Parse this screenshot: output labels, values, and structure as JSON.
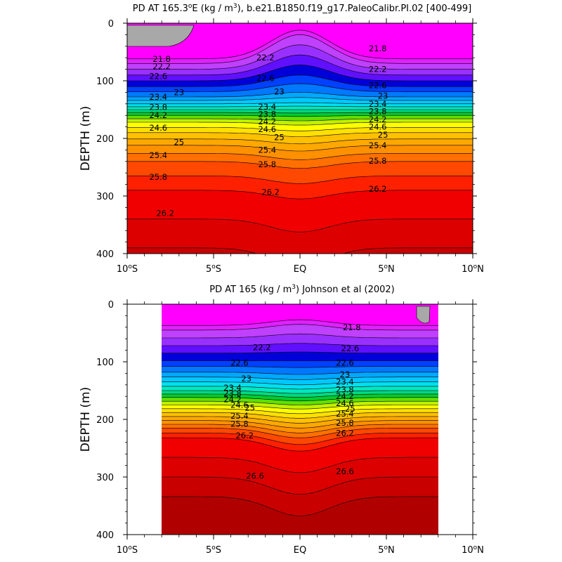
{
  "chart_data": [
    {
      "type": "contour",
      "title_main": "PD AT 165.3",
      "title_deg_sup": "o",
      "title_rest1": "E (kg / m",
      "title_unit_sup": "3",
      "title_rest2": "), b.e21.B1850.f19_g17.PaleoCalibr.PI.02 [400-499]",
      "ylabel": "DEPTH (m)",
      "xlim": [
        -10,
        10
      ],
      "ylim": [
        0,
        400
      ],
      "y_reversed": true,
      "x_ticks": [
        {
          "value": -10,
          "num": "10",
          "sup": "o",
          "hem": "S"
        },
        {
          "value": -5,
          "num": "5",
          "sup": "o",
          "hem": "S"
        },
        {
          "value": 0,
          "num": "EQ",
          "sup": "",
          "hem": ""
        },
        {
          "value": 5,
          "num": "5",
          "sup": "o",
          "hem": "N"
        },
        {
          "value": 10,
          "num": "10",
          "sup": "o",
          "hem": "N"
        }
      ],
      "y_ticks": [
        0,
        100,
        200,
        300,
        400
      ],
      "data_extent": [
        -10,
        10
      ],
      "contour_levels": [
        21.6,
        21.8,
        22.0,
        22.2,
        22.4,
        22.6,
        22.8,
        23.0,
        23.2,
        23.4,
        23.6,
        23.8,
        24.0,
        24.2,
        24.4,
        24.6,
        24.8,
        25.0,
        25.2,
        25.4,
        25.6,
        25.8,
        26.0,
        26.2,
        26.4,
        26.6,
        26.8
      ],
      "depth_profile": {
        "levels": [
          21.8,
          22.2,
          22.6,
          23.0,
          23.4,
          23.8,
          24.2,
          24.6,
          25.0,
          25.4,
          25.8,
          26.2,
          26.6
        ],
        "offpeak_depth": [
          70,
          90,
          110,
          128,
          140,
          150,
          160,
          172,
          190,
          212,
          240,
          290,
          390
        ],
        "equator_depth": [
          20,
          55,
          90,
          120,
          138,
          150,
          162,
          177,
          197,
          222,
          252,
          305,
          420
        ]
      },
      "contour_labels": [
        {
          "lat": -8.0,
          "depth": 62,
          "text": "21.8"
        },
        {
          "lat": -8.0,
          "depth": 75,
          "text": "22.2"
        },
        {
          "lat": -8.2,
          "depth": 92,
          "text": "22.6"
        },
        {
          "lat": -7.0,
          "depth": 120,
          "text": "23"
        },
        {
          "lat": -8.2,
          "depth": 128,
          "text": "23.4"
        },
        {
          "lat": -8.2,
          "depth": 146,
          "text": "23.8"
        },
        {
          "lat": -8.2,
          "depth": 160,
          "text": "24.2"
        },
        {
          "lat": -8.2,
          "depth": 182,
          "text": "24.6"
        },
        {
          "lat": -7.0,
          "depth": 207,
          "text": "25"
        },
        {
          "lat": -8.2,
          "depth": 229,
          "text": "25.4"
        },
        {
          "lat": -8.2,
          "depth": 267,
          "text": "25.8"
        },
        {
          "lat": -7.8,
          "depth": 330,
          "text": "26.2"
        },
        {
          "lat": -2.0,
          "depth": 60,
          "text": "22.2"
        },
        {
          "lat": -2.0,
          "depth": 96,
          "text": "22.6"
        },
        {
          "lat": -1.2,
          "depth": 119,
          "text": "23"
        },
        {
          "lat": -1.9,
          "depth": 145,
          "text": "23.4"
        },
        {
          "lat": -1.9,
          "depth": 158,
          "text": "23.8"
        },
        {
          "lat": -1.9,
          "depth": 171,
          "text": "24.2"
        },
        {
          "lat": -1.9,
          "depth": 184,
          "text": "24.6"
        },
        {
          "lat": -1.2,
          "depth": 198,
          "text": "25"
        },
        {
          "lat": -1.9,
          "depth": 220,
          "text": "25.4"
        },
        {
          "lat": -1.9,
          "depth": 245,
          "text": "25.8"
        },
        {
          "lat": -1.7,
          "depth": 293,
          "text": "26.2"
        },
        {
          "lat": 4.5,
          "depth": 44,
          "text": "21.8"
        },
        {
          "lat": 4.5,
          "depth": 80,
          "text": "22.2"
        },
        {
          "lat": 4.5,
          "depth": 108,
          "text": "22.6"
        },
        {
          "lat": 4.8,
          "depth": 126,
          "text": "23"
        },
        {
          "lat": 4.5,
          "depth": 140,
          "text": "23.4"
        },
        {
          "lat": 4.5,
          "depth": 153,
          "text": "23.8"
        },
        {
          "lat": 4.5,
          "depth": 167,
          "text": "24.2"
        },
        {
          "lat": 4.5,
          "depth": 180,
          "text": "24.6"
        },
        {
          "lat": 4.8,
          "depth": 194,
          "text": "25"
        },
        {
          "lat": 4.5,
          "depth": 212,
          "text": "25.4"
        },
        {
          "lat": 4.5,
          "depth": 239,
          "text": "25.8"
        },
        {
          "lat": 4.5,
          "depth": 288,
          "text": "26.2"
        }
      ]
    },
    {
      "type": "contour",
      "title_main": "PD AT 165 (kg / m",
      "title_unit_sup": "3",
      "title_rest2": ") Johnson et al (2002)",
      "ylabel": "DEPTH (m)",
      "xlim": [
        -10,
        10
      ],
      "ylim": [
        0,
        400
      ],
      "y_reversed": true,
      "x_ticks": [
        {
          "value": -10,
          "num": "10",
          "sup": "o",
          "hem": "S"
        },
        {
          "value": -5,
          "num": "5",
          "sup": "o",
          "hem": "S"
        },
        {
          "value": 0,
          "num": "EQ",
          "sup": "",
          "hem": ""
        },
        {
          "value": 5,
          "num": "5",
          "sup": "o",
          "hem": "N"
        },
        {
          "value": 10,
          "num": "10",
          "sup": "o",
          "hem": "N"
        }
      ],
      "y_ticks": [
        0,
        100,
        200,
        300,
        400
      ],
      "data_extent": [
        -8,
        8
      ],
      "contour_levels": [
        21.6,
        21.8,
        22.0,
        22.2,
        22.4,
        22.6,
        22.8,
        23.0,
        23.2,
        23.4,
        23.6,
        23.8,
        24.0,
        24.2,
        24.4,
        24.6,
        24.8,
        25.0,
        25.2,
        25.4,
        25.6,
        25.8,
        26.0,
        26.2,
        26.4,
        26.6,
        26.8
      ],
      "depth_profile": {
        "levels": [
          21.8,
          22.2,
          22.6,
          23.0,
          23.4,
          23.8,
          24.2,
          24.6,
          25.0,
          25.4,
          25.8,
          26.2,
          26.6
        ],
        "offpeak_depth": [
          45,
          72,
          98,
          118,
          135,
          150,
          162,
          175,
          188,
          202,
          215,
          232,
          300
        ],
        "equator_depth": [
          35,
          68,
          98,
          122,
          140,
          155,
          168,
          182,
          198,
          215,
          232,
          255,
          330
        ]
      },
      "contour_labels": [
        {
          "lat": 3.0,
          "depth": 40,
          "text": "21.8"
        },
        {
          "lat": -2.2,
          "depth": 75,
          "text": "22.2"
        },
        {
          "lat": 2.9,
          "depth": 77,
          "text": "22.6"
        },
        {
          "lat": -3.5,
          "depth": 102,
          "text": "22.6"
        },
        {
          "lat": 2.6,
          "depth": 102,
          "text": "22.6"
        },
        {
          "lat": -3.1,
          "depth": 129,
          "text": "23"
        },
        {
          "lat": 2.6,
          "depth": 122,
          "text": "23"
        },
        {
          "lat": -3.9,
          "depth": 145,
          "text": "23.4"
        },
        {
          "lat": 2.6,
          "depth": 135,
          "text": "23.4"
        },
        {
          "lat": -3.9,
          "depth": 155,
          "text": "23.8"
        },
        {
          "lat": 2.6,
          "depth": 148,
          "text": "23.8"
        },
        {
          "lat": -3.9,
          "depth": 165,
          "text": "24.2"
        },
        {
          "lat": 2.6,
          "depth": 160,
          "text": "24.2"
        },
        {
          "lat": -3.5,
          "depth": 175,
          "text": "24.6"
        },
        {
          "lat": 2.6,
          "depth": 172,
          "text": "24.6"
        },
        {
          "lat": -2.9,
          "depth": 180,
          "text": "25"
        },
        {
          "lat": 2.9,
          "depth": 182,
          "text": "25"
        },
        {
          "lat": -3.5,
          "depth": 194,
          "text": "25.4"
        },
        {
          "lat": 2.6,
          "depth": 190,
          "text": "25.4"
        },
        {
          "lat": -3.5,
          "depth": 208,
          "text": "25.8"
        },
        {
          "lat": 2.6,
          "depth": 206,
          "text": "25.8"
        },
        {
          "lat": -3.2,
          "depth": 228,
          "text": "26.2"
        },
        {
          "lat": 2.6,
          "depth": 224,
          "text": "26.2"
        },
        {
          "lat": -2.6,
          "depth": 298,
          "text": "26.6"
        },
        {
          "lat": 2.6,
          "depth": 290,
          "text": "26.6"
        }
      ]
    }
  ],
  "palette": [
    "#ff00ff",
    "#e020ff",
    "#c040ff",
    "#9a30ff",
    "#6010ff",
    "#0000d8",
    "#0040ff",
    "#0078ff",
    "#00a8ff",
    "#00c8ff",
    "#00e0f0",
    "#00e8c0",
    "#00d880",
    "#00cc30",
    "#60e000",
    "#c0f000",
    "#ffff00",
    "#ffe000",
    "#ffc000",
    "#ffa800",
    "#ff9000",
    "#ff7000",
    "#ff4800",
    "#ff2000",
    "#f00000",
    "#dc0000",
    "#c80000",
    "#b00000"
  ],
  "land_color": "#a8a8a8"
}
